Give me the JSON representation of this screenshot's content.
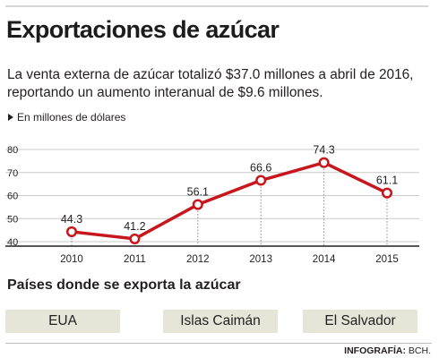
{
  "header": {
    "title": "Exportaciones de azúcar",
    "subtitle": "La venta externa de azúcar totalizó $37.0 millones a abril de 2016, reportando un aumento interanual de $9.6 millones."
  },
  "unit_label": "En millones de dólares",
  "countries": {
    "heading": "Países donde se exporta la azúcar",
    "items": [
      "EUA",
      "Islas Caimán",
      "El Salvador"
    ]
  },
  "credit": {
    "label": "INFOGRAFÍA:",
    "source": "BCH."
  },
  "colors": {
    "line": "#c8161d",
    "country_box": "#e6e6d8"
  },
  "chart_data": {
    "type": "line",
    "categories": [
      "2010",
      "2011",
      "2012",
      "2013",
      "2014",
      "2015"
    ],
    "values": [
      44.3,
      41.2,
      56.1,
      66.6,
      74.3,
      61.1
    ],
    "value_labels": [
      "44.3",
      "41.2",
      "56.1",
      "66.6",
      "74.3",
      "61.1"
    ],
    "ylim": [
      40,
      80
    ],
    "yticks": [
      40,
      50,
      60,
      70,
      80
    ],
    "ytick_labels": [
      "40",
      "50",
      "60",
      "70",
      "80"
    ],
    "grid": true
  }
}
